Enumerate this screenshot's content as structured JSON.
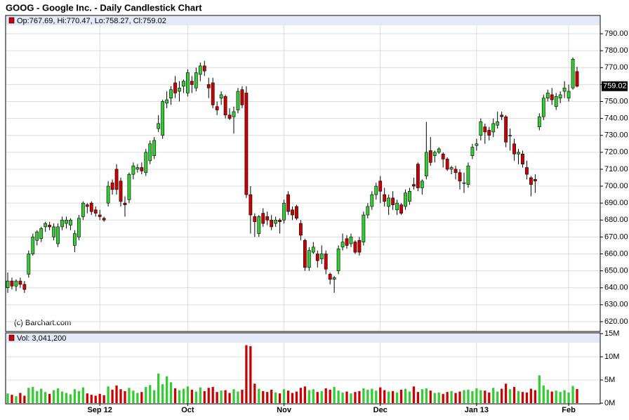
{
  "chart_data": [
    {
      "type": "candlestick",
      "title": "GOOG - Google Inc. - Daily Candlestick Chart",
      "legend": "Op:767.69, Hi:770.47, Lo:758.27, Cl:759.02",
      "annotation": "(c) Barchart.com",
      "up_color": "#33cc33",
      "down_color": "#cc0000",
      "grid": true,
      "open": [
        640,
        644,
        641,
        644,
        642,
        648,
        660,
        668,
        669,
        676,
        677,
        670,
        666,
        676,
        678,
        677,
        665,
        670,
        682,
        689,
        690,
        686,
        683,
        681,
        690,
        702,
        710,
        703,
        690,
        692,
        707,
        710,
        711,
        708,
        715,
        718,
        734,
        730,
        749,
        752,
        761,
        756,
        759,
        755,
        762,
        758,
        766,
        771,
        760,
        761,
        747,
        752,
        753,
        742,
        741,
        745,
        757,
        755,
        695,
        682,
        672,
        684,
        682,
        680,
        678,
        680,
        680,
        695,
        686,
        688,
        678,
        668,
        652,
        661,
        660,
        657,
        660,
        648,
        645,
        650,
        664,
        669,
        666,
        667,
        668,
        667,
        683,
        688,
        695,
        703,
        695,
        688,
        693,
        686,
        689,
        688,
        691,
        701,
        713,
        699,
        706,
        721,
        718,
        720,
        719,
        716,
        710,
        710,
        708,
        702,
        701,
        718,
        724,
        730,
        735,
        733,
        732,
        736,
        742,
        741,
        730,
        725,
        719,
        719,
        711,
        705,
        704,
        735,
        741,
        752,
        754,
        747,
        752,
        756,
        752,
        758,
        767.69
      ],
      "high": [
        649,
        646,
        645,
        646,
        644,
        662,
        672,
        674,
        676,
        679,
        679,
        678,
        678,
        682,
        682,
        681,
        674,
        683,
        691,
        690,
        691,
        688,
        686,
        682,
        703,
        704,
        713,
        705,
        694,
        708,
        714,
        713,
        714,
        722,
        727,
        729,
        742,
        751,
        756,
        759,
        765,
        762,
        763,
        769,
        765,
        770,
        773,
        774,
        764,
        764,
        750,
        756,
        754,
        746,
        747,
        758,
        759,
        759,
        700,
        684,
        683,
        687,
        685,
        683,
        682,
        681,
        692,
        697,
        688,
        689,
        680,
        669,
        664,
        667,
        662,
        665,
        662,
        649,
        647,
        665,
        672,
        671,
        672,
        668,
        670,
        685,
        690,
        697,
        702,
        706,
        699,
        695,
        697,
        692,
        690,
        698,
        699,
        705,
        714,
        704,
        738,
        729,
        721,
        723,
        720,
        717,
        712,
        712,
        710,
        708,
        714,
        725,
        728,
        740,
        737,
        735,
        740,
        744,
        744,
        742,
        734,
        728,
        722,
        721,
        715,
        706,
        707,
        743,
        754,
        757,
        758,
        755,
        756,
        762,
        760,
        776,
        770.47
      ],
      "low": [
        637,
        639,
        638,
        640,
        637,
        646,
        659,
        665,
        667,
        673,
        674,
        668,
        664,
        674,
        675,
        674,
        661,
        668,
        680,
        684,
        683,
        682,
        680,
        679,
        688,
        695,
        695,
        688,
        682,
        690,
        704,
        708,
        707,
        706,
        713,
        716,
        732,
        728,
        746,
        748,
        752,
        750,
        755,
        753,
        755,
        756,
        762,
        765,
        752,
        746,
        742,
        748,
        740,
        739,
        731,
        743,
        746,
        693,
        672,
        670,
        670,
        676,
        677,
        674,
        676,
        672,
        678,
        683,
        680,
        680,
        668,
        650,
        650,
        660,
        652,
        654,
        648,
        642,
        637,
        648,
        662,
        663,
        664,
        660,
        659,
        665,
        681,
        686,
        692,
        690,
        688,
        683,
        686,
        683,
        683,
        686,
        689,
        698,
        697,
        695,
        704,
        712,
        714,
        719,
        711,
        709,
        707,
        704,
        698,
        696,
        699,
        716,
        721,
        727,
        725,
        727,
        729,
        734,
        739,
        723,
        721,
        715,
        713,
        711,
        704,
        694,
        696,
        733,
        739,
        750,
        748,
        745,
        749,
        752,
        750,
        757,
        758.27
      ],
      "close": [
        644,
        641,
        644,
        642,
        639,
        660,
        670,
        673,
        675,
        678,
        676,
        676,
        676,
        680,
        680,
        680,
        672,
        681,
        690,
        688,
        685,
        684,
        682,
        680,
        700,
        698,
        698,
        691,
        689,
        707,
        712,
        711,
        709,
        720,
        725,
        727,
        737,
        750,
        751,
        757,
        755,
        758,
        762,
        767,
        760,
        767,
        771,
        768,
        758,
        748,
        745,
        754,
        742,
        740,
        744,
        756,
        748,
        695,
        683,
        679,
        682,
        678,
        680,
        676,
        680,
        679,
        690,
        685,
        683,
        681,
        671,
        652,
        662,
        664,
        656,
        660,
        651,
        645,
        646,
        663,
        667,
        665,
        670,
        661,
        661,
        683,
        688,
        695,
        700,
        697,
        691,
        693,
        689,
        690,
        684,
        696,
        697,
        700,
        699,
        703,
        720,
        714,
        720,
        722,
        716,
        710,
        711,
        708,
        703,
        702,
        712,
        723,
        725,
        738,
        732,
        730,
        737,
        738,
        741,
        726,
        730,
        719,
        720,
        713,
        707,
        701,
        703,
        741,
        752,
        755,
        751,
        753,
        754,
        758,
        756,
        775,
        759.02
      ],
      "ylim": [
        615,
        795
      ],
      "yticks": [
        {
          "value": 620,
          "label": "620.00"
        },
        {
          "value": 630,
          "label": "630.00"
        },
        {
          "value": 640,
          "label": "640.00"
        },
        {
          "value": 650,
          "label": "650.00"
        },
        {
          "value": 660,
          "label": "660.00"
        },
        {
          "value": 670,
          "label": "670.00"
        },
        {
          "value": 680,
          "label": "680.00"
        },
        {
          "value": 690,
          "label": "690.00"
        },
        {
          "value": 700,
          "label": "700.00"
        },
        {
          "value": 710,
          "label": "710.00"
        },
        {
          "value": 720,
          "label": "720.00"
        },
        {
          "value": 730,
          "label": "730.00"
        },
        {
          "value": 740,
          "label": "740.00"
        },
        {
          "value": 750,
          "label": "750.00"
        },
        {
          "value": 760,
          "label": "760.00"
        },
        {
          "value": 770,
          "label": "770.00"
        },
        {
          "value": 780,
          "label": "780.00"
        },
        {
          "value": 790,
          "label": "790.00"
        }
      ],
      "last_price": 759.02
    },
    {
      "type": "bar",
      "legend": "Vol: 3,041,200",
      "categories": [
        null,
        null,
        null,
        null,
        null,
        null,
        null,
        null,
        null,
        null,
        null,
        null,
        null,
        null,
        null,
        null,
        null,
        null,
        null,
        null,
        null,
        null,
        "Sep 12",
        null,
        null,
        null,
        null,
        null,
        null,
        null,
        null,
        null,
        null,
        null,
        null,
        null,
        null,
        null,
        null,
        null,
        null,
        null,
        null,
        "Oct",
        null,
        null,
        null,
        null,
        null,
        null,
        null,
        null,
        null,
        null,
        null,
        null,
        null,
        null,
        null,
        null,
        null,
        null,
        null,
        null,
        null,
        null,
        "Nov",
        null,
        null,
        null,
        null,
        null,
        null,
        null,
        null,
        null,
        null,
        null,
        null,
        null,
        null,
        null,
        null,
        null,
        null,
        null,
        null,
        null,
        null,
        "Dec",
        null,
        null,
        null,
        null,
        null,
        null,
        null,
        null,
        null,
        null,
        null,
        null,
        null,
        null,
        null,
        null,
        null,
        null,
        null,
        null,
        null,
        null,
        "Jan 13",
        null,
        null,
        null,
        null,
        null,
        null,
        null,
        null,
        null,
        null,
        null,
        null,
        null,
        null,
        null,
        null,
        null,
        null,
        null,
        null,
        null,
        "Feb",
        null,
        null
      ],
      "values": [
        2.1,
        1.8,
        1.5,
        2.2,
        1.6,
        3.3,
        3.5,
        2.6,
        3.1,
        2.4,
        2.0,
        2.8,
        3.2,
        2.5,
        2.2,
        1.9,
        3.0,
        2.6,
        3.4,
        2.1,
        1.8,
        1.6,
        2.0,
        1.7,
        3.6,
        2.9,
        3.8,
        3.0,
        2.6,
        3.3,
        2.7,
        2.2,
        2.4,
        3.5,
        3.9,
        2.8,
        6.4,
        4.1,
        5.8,
        4.5,
        3.2,
        2.8,
        3.1,
        3.6,
        2.9,
        2.5,
        3.4,
        2.6,
        3.3,
        3.5,
        2.4,
        2.7,
        2.8,
        2.2,
        3.0,
        2.5,
        2.9,
        12.5,
        12.3,
        4.2,
        3.1,
        2.6,
        2.4,
        2.9,
        2.3,
        2.1,
        3.0,
        2.7,
        2.2,
        2.5,
        3.3,
        3.6,
        2.8,
        3.0,
        2.4,
        2.6,
        3.2,
        2.9,
        3.5,
        2.7,
        2.3,
        2.5,
        2.1,
        2.4,
        2.6,
        3.2,
        2.9,
        3.1,
        2.7,
        3.4,
        2.8,
        2.5,
        2.6,
        2.3,
        2.9,
        3.1,
        2.5,
        3.6,
        2.4,
        3.0,
        3.2,
        2.7,
        2.2,
        2.3,
        2.0,
        2.4,
        2.6,
        2.2,
        2.5,
        2.8,
        2.9,
        2.6,
        3.2,
        2.8,
        2.7,
        2.3,
        3.3,
        2.5,
        3.1,
        4.2,
        3.0,
        3.5,
        2.6,
        2.4,
        2.3,
        3.1,
        2.8,
        6.0,
        3.8,
        2.9,
        2.5,
        2.7,
        2.4,
        2.8,
        2.3,
        3.7,
        3.04
      ],
      "ylim": [
        0,
        15
      ],
      "yticks": [
        {
          "value": 0,
          "label": "0M"
        },
        {
          "value": 5,
          "label": "5M"
        },
        {
          "value": 10,
          "label": "10M"
        },
        {
          "value": 15,
          "label": "15M"
        }
      ],
      "grid": true
    }
  ]
}
